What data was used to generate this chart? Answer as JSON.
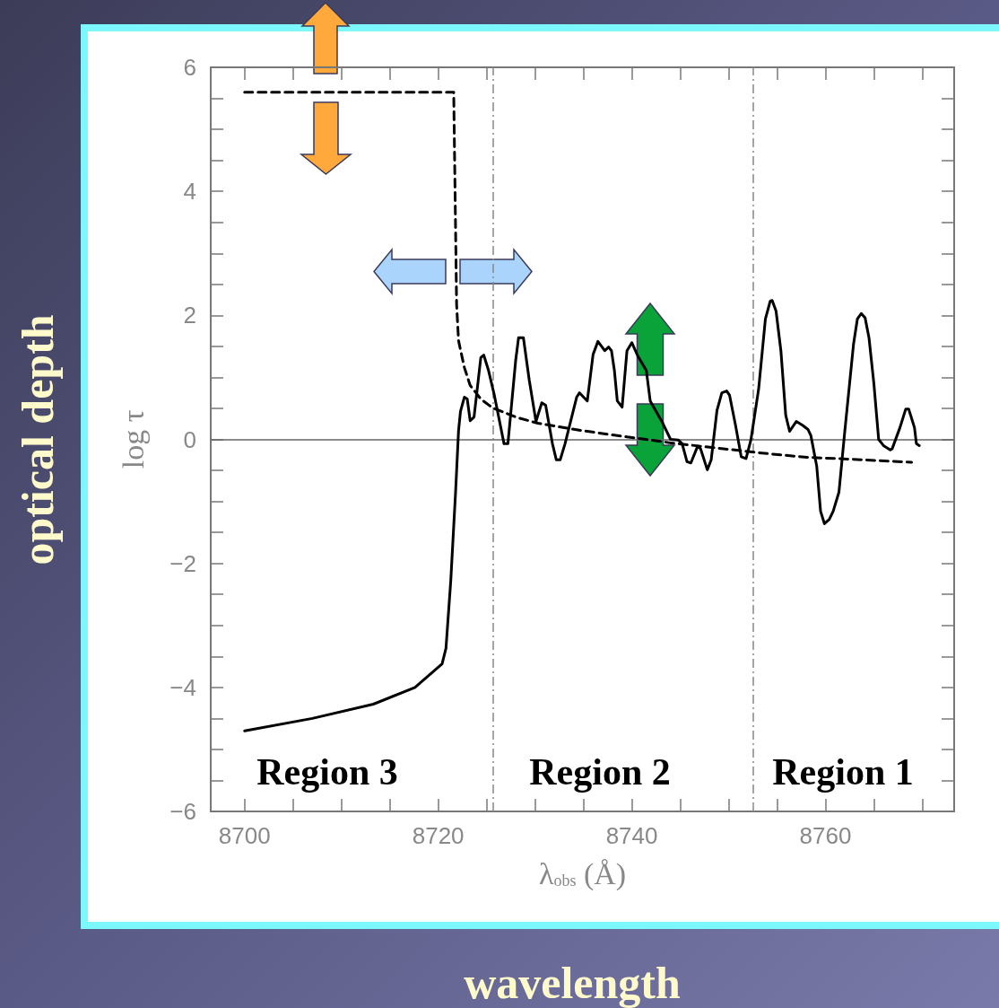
{
  "chart_data": {
    "type": "line",
    "xlabel": "λ$_{obs}$ (Å)",
    "ylabel": "log τ",
    "xlim": [
      8696.5,
      8773.3
    ],
    "ylim": [
      -6,
      6
    ],
    "xticks": [
      8700,
      {
        "value": 8705,
        "label": null
      },
      {
        "value": 8710,
        "label": null
      },
      {
        "value": 8715,
        "label": null
      },
      8720,
      {
        "value": 8725,
        "label": null
      },
      {
        "value": 8730,
        "label": null
      },
      {
        "value": 8735,
        "label": null
      },
      8740,
      {
        "value": 8745,
        "label": null
      },
      {
        "value": 8750,
        "label": null
      },
      {
        "value": 8755,
        "label": null
      },
      8760,
      {
        "value": 8765,
        "label": null
      },
      {
        "value": 8770,
        "label": null
      }
    ],
    "yticks": [
      -6,
      {
        "value": -5.5,
        "label": null
      },
      {
        "value": -5,
        "label": null
      },
      {
        "value": -4.5,
        "label": null
      },
      -4,
      {
        "value": -3.5,
        "label": null
      },
      {
        "value": -3,
        "label": null
      },
      {
        "value": -2.5,
        "label": null
      },
      -2,
      {
        "value": -1.5,
        "label": null
      },
      {
        "value": -1,
        "label": null
      },
      {
        "value": -0.5,
        "label": null
      },
      0,
      {
        "value": 0.5,
        "label": null
      },
      {
        "value": 1,
        "label": null
      },
      {
        "value": 1.5,
        "label": null
      },
      2,
      {
        "value": 2.5,
        "label": null
      },
      {
        "value": 3,
        "label": null
      },
      {
        "value": 3.5,
        "label": null
      },
      4,
      {
        "value": 4.5,
        "label": null
      },
      {
        "value": 5,
        "label": null
      },
      {
        "value": 5.5,
        "label": null
      },
      6
    ],
    "grid": false,
    "marker": "none",
    "series": [
      {
        "color": "#000000",
        "line_style": "solid",
        "x": [
          8700,
          8707,
          8713.3,
          8717.6,
          8720.4,
          8720.8,
          8721.3,
          8721.8,
          8722.1,
          8722.3,
          8722.7,
          8723.0,
          8723.3,
          8723.7,
          8724.4,
          8724.7,
          8725.2,
          8725.8,
          8726.8,
          8727.2,
          8728.0,
          8728.3,
          8728.8,
          8729.4,
          8730.1,
          8730.7,
          8731.1,
          8731.8,
          8732.2,
          8732.6,
          8733.1,
          8734.3,
          8734.6,
          8735.4,
          8736.0,
          8736.5,
          8737.2,
          8737.6,
          8737.9,
          8738.2,
          8738.5,
          8739.0,
          8739.5,
          8740.0,
          8740.6,
          8741.5,
          8741.9,
          8743.1,
          8744.0,
          8744.8,
          8745.2,
          8745.7,
          8746.1,
          8746.8,
          8747.1,
          8747.8,
          8748.2,
          8748.8,
          8749.3,
          8749.8,
          8750.1,
          8750.7,
          8751.3,
          8751.8,
          8752.3,
          8753.1,
          8753.8,
          8754.3,
          8754.5,
          8754.9,
          8755.4,
          8755.9,
          8756.3,
          8757.0,
          8757.7,
          8758.2,
          8758.5,
          8759.1,
          8759.5,
          8759.9,
          8760.4,
          8760.8,
          8761.4,
          8762.0,
          8762.9,
          8763.3,
          8763.7,
          8764.1,
          8764.5,
          8765.0,
          8765.5,
          8766.0,
          8766.7,
          8766.9,
          8767.7,
          8768.3,
          8768.6,
          8769.2,
          8769.4,
          8769.7
        ],
        "values": [
          -4.7,
          -4.5,
          -4.27,
          -4.0,
          -3.62,
          -3.37,
          -2.27,
          -0.83,
          0.14,
          0.45,
          0.68,
          0.65,
          0.3,
          0.36,
          1.32,
          1.36,
          1.11,
          0.71,
          -0.07,
          -0.07,
          1.27,
          1.64,
          1.64,
          0.96,
          0.29,
          0.59,
          0.55,
          -0.07,
          -0.33,
          -0.33,
          -0.07,
          0.68,
          0.75,
          0.62,
          1.37,
          1.58,
          1.43,
          1.49,
          1.43,
          1.11,
          0.62,
          0.52,
          1.43,
          1.56,
          1.35,
          1.11,
          0.62,
          0.29,
          0,
          -0.01,
          -0.07,
          -0.36,
          -0.38,
          -0.11,
          -0.15,
          -0.49,
          -0.33,
          0.47,
          0.75,
          0.78,
          0.71,
          0.24,
          -0.28,
          -0.31,
          -0.01,
          0.81,
          1.94,
          2.23,
          2.24,
          2.07,
          1.43,
          0.39,
          0.13,
          0.29,
          0.22,
          0.16,
          0.06,
          -0.43,
          -1.16,
          -1.36,
          -1.29,
          -1.16,
          -0.85,
          0.13,
          1.53,
          1.94,
          2.03,
          1.96,
          1.64,
          0.91,
          0,
          -0.1,
          -0.17,
          -0.15,
          0.19,
          0.49,
          0.49,
          0.19,
          -0.07,
          -0.1
        ]
      },
      {
        "color": "#000000",
        "line_style": "dashed",
        "x": [
          8700,
          8721.6,
          8721.9,
          8722.1,
          8722.7,
          8723.3,
          8724.4,
          8725.6,
          8728.0,
          8730.3,
          8734.9,
          8739.5,
          8744.2,
          8748.8,
          8753.4,
          8758.1,
          8762.7,
          8768.9
        ],
        "values": [
          5.6,
          5.6,
          2.17,
          1.59,
          1.16,
          0.87,
          0.65,
          0.51,
          0.36,
          0.26,
          0.14,
          0.04,
          -0.06,
          -0.14,
          -0.22,
          -0.29,
          -0.32,
          -0.37
        ]
      }
    ],
    "ref_lines": [
      {
        "axis": "x",
        "value": 8725.7,
        "color": "#888888",
        "line_style": "dashed"
      },
      {
        "axis": "x",
        "value": 8752.5,
        "color": "#888888",
        "line_style": "dashed"
      },
      {
        "axis": "y",
        "value": 0,
        "color": "#666666",
        "line_style": "solid"
      }
    ],
    "annotations": [
      "optical depth",
      "wavelength",
      "Region 3",
      "Region 2",
      "Region 1"
    ]
  }
}
